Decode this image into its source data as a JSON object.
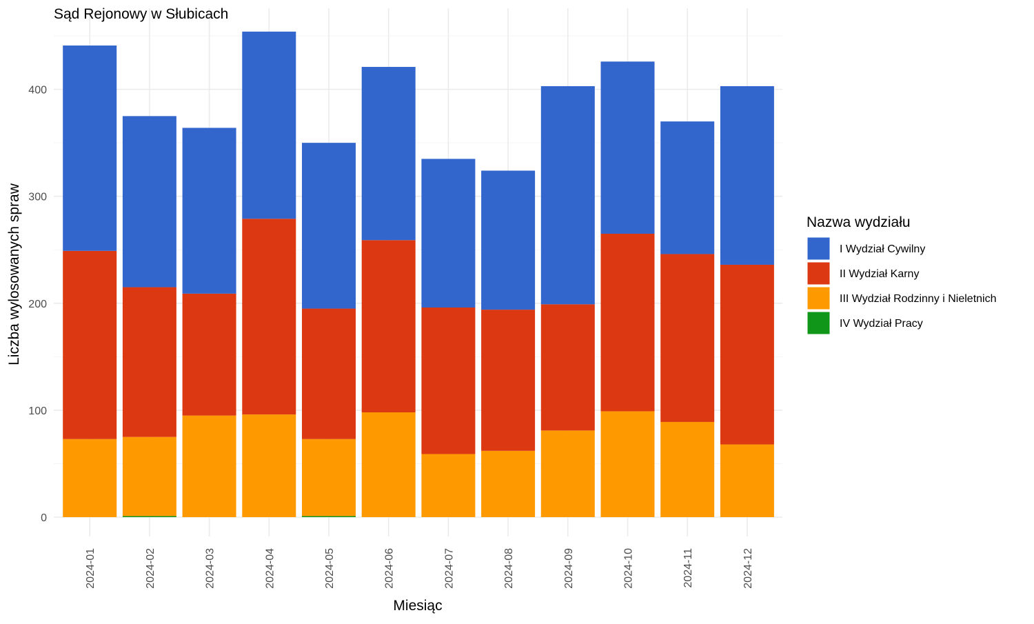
{
  "chart_data": {
    "type": "bar",
    "stacked": true,
    "title": "Sąd Rejonowy w Słubicach",
    "xlabel": "Miesiąc",
    "ylabel": "Liczba wylosowanych spraw",
    "ylim": [
      0,
      460
    ],
    "yticks": [
      0,
      100,
      200,
      300,
      400
    ],
    "grid": true,
    "legend": {
      "title": "Nazwa wydziału",
      "position": "right"
    },
    "categories": [
      "2024-01",
      "2024-02",
      "2024-03",
      "2024-04",
      "2024-05",
      "2024-06",
      "2024-07",
      "2024-08",
      "2024-09",
      "2024-10",
      "2024-11",
      "2024-12"
    ],
    "series": [
      {
        "name": "IV Wydział Pracy",
        "color": "#109618",
        "values": [
          0,
          1,
          0,
          0,
          1,
          0,
          0,
          0,
          0,
          0,
          0,
          0
        ]
      },
      {
        "name": "III Wydział Rodzinny i Nieletnich",
        "color": "#FF9900",
        "values": [
          73,
          74,
          95,
          96,
          72,
          98,
          59,
          62,
          81,
          99,
          89,
          68
        ]
      },
      {
        "name": "II Wydział Karny",
        "color": "#DC3912",
        "values": [
          176,
          140,
          114,
          183,
          122,
          161,
          137,
          132,
          118,
          166,
          157,
          168
        ]
      },
      {
        "name": "I Wydział Cywilny",
        "color": "#3366CC",
        "values": [
          192,
          160,
          155,
          175,
          155,
          162,
          139,
          130,
          204,
          161,
          124,
          167
        ]
      }
    ],
    "legend_order": [
      "I Wydział Cywilny",
      "II Wydział Karny",
      "III Wydział Rodzinny i Nieletnich",
      "IV Wydział Pracy"
    ]
  }
}
